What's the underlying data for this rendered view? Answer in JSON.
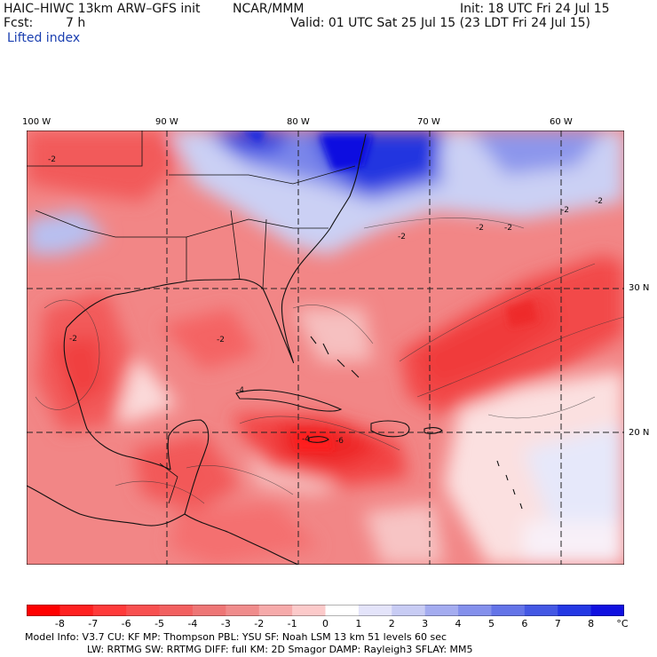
{
  "header": {
    "model": "HAIC–HIWC 13km ARW–GFS init",
    "org": "NCAR/MMM",
    "init": "Init: 18 UTC Fri 24 Jul 15",
    "fcst_label": "Fcst:",
    "fcst_value": "7 h",
    "valid": "Valid: 01 UTC Sat 25 Jul 15 (23 LDT Fri 24 Jul 15)",
    "field": "Lifted index"
  },
  "map": {
    "lon_labels": [
      "100 W",
      "90 W",
      "80 W",
      "70 W",
      "60 W"
    ],
    "lat_labels": [
      "30 N",
      "20 N"
    ],
    "contour_labels": [
      "-2",
      "-2",
      "-2",
      "-2",
      "-2",
      "-2",
      "-4",
      "-4",
      "-6",
      "-2",
      "-2"
    ],
    "colors": {
      "strong_red": "#ff2020",
      "mid_red": "#f06060",
      "light_red": "#f4a0a0",
      "pale": "#fbe0e0",
      "light_blue": "#c8d0f4",
      "mid_blue": "#6070e8",
      "deep_blue": "#1020e0"
    }
  },
  "colorbar": {
    "labels": [
      "-8",
      "-7",
      "-6",
      "-5",
      "-4",
      "-3",
      "-2",
      "-1",
      "0",
      "1",
      "2",
      "3",
      "4",
      "5",
      "6",
      "7",
      "8"
    ],
    "unit": "°C",
    "colors": [
      "#ff0000",
      "#ff2020",
      "#ff3a3a",
      "#f85050",
      "#f26060",
      "#ee7676",
      "#f08c8c",
      "#f6aaaa",
      "#fccaca",
      "#ffffff",
      "#e4e4fa",
      "#c8ccf4",
      "#a4acf0",
      "#8490ec",
      "#6474e8",
      "#4458e4",
      "#2438e4",
      "#1010e0"
    ]
  },
  "info": {
    "line1": "Model Info: V3.7     CU: KF      MP: Thompson     PBL: YSU      SF: Noah LSM     13 km    51 levels   60 sec",
    "line2": "LW: RRTMG      SW: RRTMG   DIFF: full    KM: 2D Smagor DAMP: Rayleigh3   SFLAY: MM5"
  }
}
